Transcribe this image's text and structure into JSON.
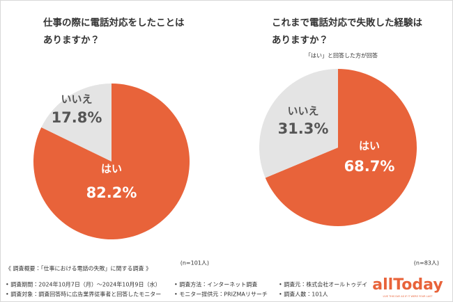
{
  "chart_data": [
    {
      "type": "pie",
      "title": [
        "仕事の際に電話対応をしたことは",
        "ありますか？"
      ],
      "note": "(n=101人)",
      "categories": [
        "はい",
        "いいえ"
      ],
      "values": [
        82.2,
        17.8
      ],
      "value_labels": [
        "82.2%",
        "17.8%"
      ],
      "colors": [
        "#e8633a",
        "#e4e4e4"
      ]
    },
    {
      "type": "pie",
      "title": [
        "これまで電話対応で失敗した経験は",
        "ありますか？"
      ],
      "subtitle": "「はい」と回答した方が回答",
      "note": "(n=83人)",
      "categories": [
        "はい",
        "いいえ"
      ],
      "values": [
        68.7,
        31.3
      ],
      "value_labels": [
        "68.7%",
        "31.3%"
      ],
      "colors": [
        "#e8633a",
        "#e4e4e4"
      ]
    }
  ],
  "footer": {
    "title": "《 調査概要：「仕事における電話の失敗」に関する調査 》",
    "items": [
      "• 調査期間：2024年10月7日（月）～2024年10月9日（水）",
      "• 調査方法：インターネット調査",
      "• 調査元：株式会社オールトゥデイ",
      "• 調査対象：調査回答時に広告業界従事者と回答したモニター",
      "• モニター提供元：PRIZMAリサーチ",
      "• 調査人数：101人"
    ]
  },
  "logo": {
    "name": "allToday",
    "tagline": "LIVE THIS DAY AS IF IT WERE YOUR LAST"
  }
}
